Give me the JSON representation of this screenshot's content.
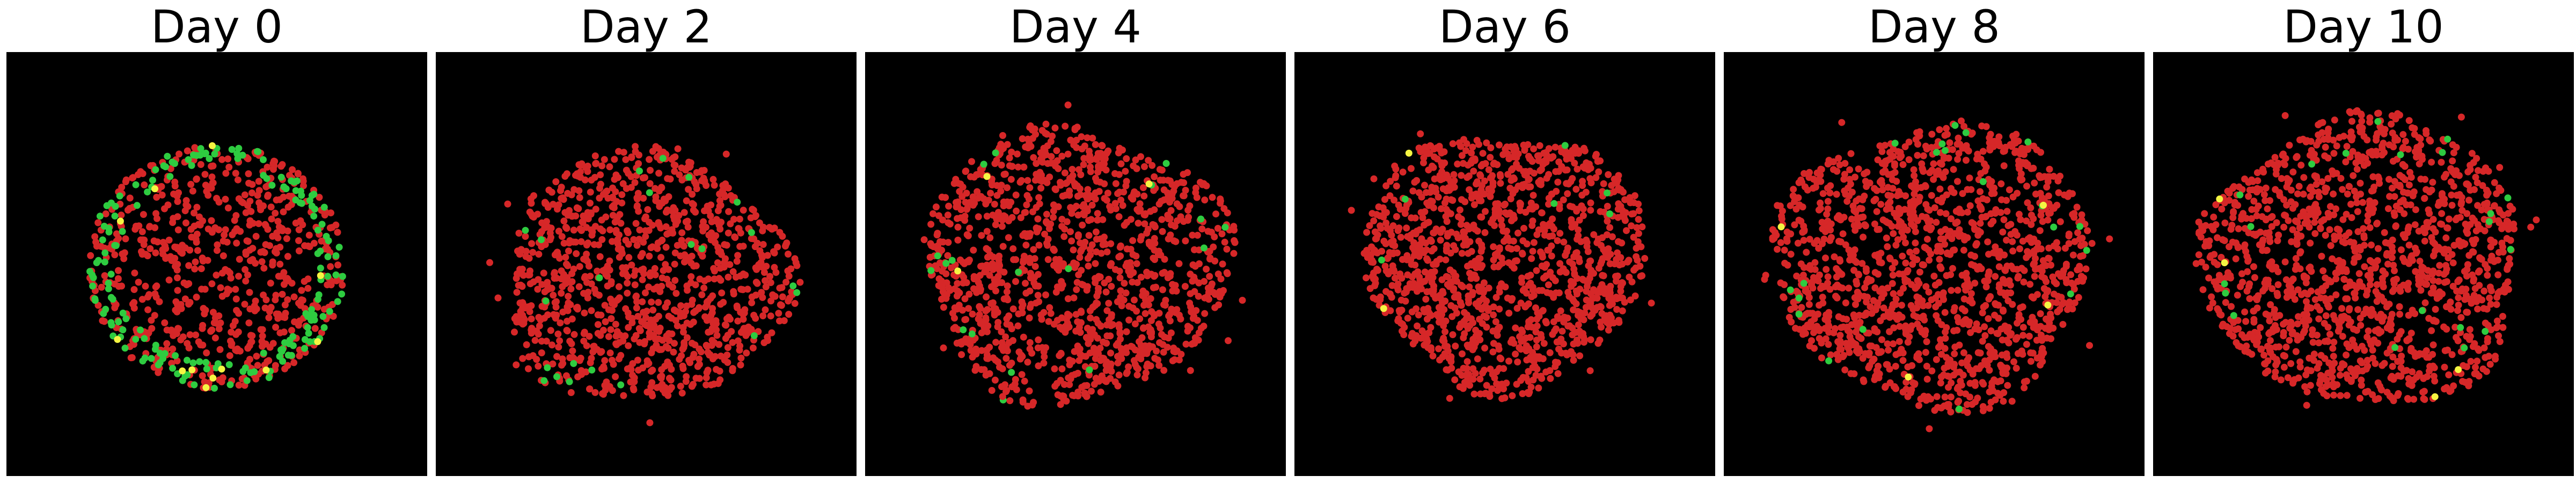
{
  "figure": {
    "background_color": "#000000",
    "cell_colors": {
      "red": "#d62728",
      "green": "#2ecc40",
      "yellow": "#f5f542"
    },
    "panels": [
      {
        "title": "Day 0",
        "red": 650,
        "green": 180,
        "yellow": 12,
        "green_on_rim": true
      },
      {
        "title": "Day 2",
        "red": 1050,
        "green": 22,
        "yellow": 0,
        "green_on_rim": false
      },
      {
        "title": "Day 4",
        "red": 1200,
        "green": 18,
        "yellow": 3,
        "green_on_rim": false
      },
      {
        "title": "Day 6",
        "red": 1250,
        "green": 6,
        "yellow": 2,
        "green_on_rim": false
      },
      {
        "title": "Day 8",
        "red": 1350,
        "green": 20,
        "yellow": 4,
        "green_on_rim": false
      },
      {
        "title": "Day 10",
        "red": 1350,
        "green": 20,
        "yellow": 4,
        "green_on_rim": false
      }
    ]
  }
}
